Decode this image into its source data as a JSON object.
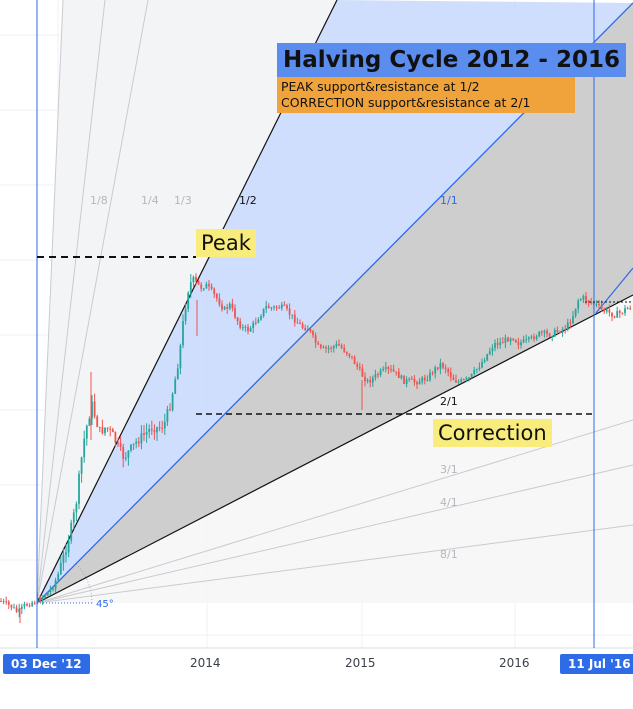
{
  "annotations": {
    "title": "Halving Cycle 2012 - 2016",
    "line1": "PEAK support&resistance at 1/2",
    "line2": "CORRECTION support&resistance at 2/1",
    "peak": "Peak",
    "correction": "Correction",
    "angle": "45°"
  },
  "fan_labels": [
    "1/8",
    "1/4",
    "1/3",
    "1/2",
    "1/1",
    "2/1",
    "3/1",
    "4/1",
    "8/1"
  ],
  "axis": {
    "start_badge": "03 Dec '12",
    "end_badge": "11 Jul '16",
    "ticks": [
      "2014",
      "2015",
      "2016"
    ]
  },
  "colors": {
    "up_candle": "#26a69a",
    "down_candle": "#ef5350",
    "fan_fill_blue": "#c7d8fb",
    "fan_fill_gray": "#c9c9c9",
    "fan_line_blue": "#2e6be6",
    "title_bg": "#5b8def",
    "subtitle_bg": "#f0a33a",
    "label_bg": "#f7ec7c",
    "badge_bg": "#2e6be6"
  },
  "chart_data": {
    "type": "candlestick",
    "series": [
      {
        "values": [
          [
            0,
            601
          ],
          [
            6,
            604
          ],
          [
            12,
            607
          ],
          [
            18,
            613
          ],
          [
            24,
            606
          ],
          [
            30,
            603
          ],
          [
            36,
            601
          ],
          [
            44,
            596
          ],
          [
            52,
            588
          ],
          [
            58,
            575
          ],
          [
            64,
            555
          ],
          [
            70,
            533
          ],
          [
            76,
            505
          ],
          [
            80,
            470
          ],
          [
            84,
            440
          ],
          [
            88,
            420
          ],
          [
            92,
            405
          ],
          [
            96,
            420
          ],
          [
            100,
            432
          ],
          [
            106,
            427
          ],
          [
            112,
            434
          ],
          [
            118,
            447
          ],
          [
            124,
            458
          ],
          [
            130,
            450
          ],
          [
            138,
            440
          ],
          [
            146,
            433
          ],
          [
            152,
            427
          ],
          [
            158,
            428
          ],
          [
            164,
            425
          ],
          [
            170,
            405
          ],
          [
            176,
            375
          ],
          [
            180,
            350
          ],
          [
            184,
            315
          ],
          [
            188,
            290
          ],
          [
            192,
            280
          ],
          [
            196,
            283
          ],
          [
            200,
            288
          ],
          [
            206,
            285
          ],
          [
            212,
            292
          ],
          [
            218,
            300
          ],
          [
            224,
            310
          ],
          [
            230,
            305
          ],
          [
            236,
            318
          ],
          [
            242,
            328
          ],
          [
            248,
            330
          ],
          [
            254,
            324
          ],
          [
            260,
            315
          ],
          [
            266,
            307
          ],
          [
            272,
            308
          ],
          [
            278,
            307
          ],
          [
            284,
            308
          ],
          [
            290,
            314
          ],
          [
            296,
            321
          ],
          [
            302,
            327
          ],
          [
            308,
            328
          ],
          [
            314,
            340
          ],
          [
            320,
            350
          ],
          [
            326,
            349
          ],
          [
            332,
            347
          ],
          [
            338,
            345
          ],
          [
            344,
            350
          ],
          [
            350,
            355
          ],
          [
            356,
            365
          ],
          [
            362,
            375
          ],
          [
            368,
            382
          ],
          [
            374,
            377
          ],
          [
            380,
            373
          ],
          [
            386,
            370
          ],
          [
            392,
            371
          ],
          [
            398,
            375
          ],
          [
            404,
            381
          ],
          [
            410,
            381
          ],
          [
            416,
            382
          ],
          [
            422,
            380
          ],
          [
            428,
            377
          ],
          [
            434,
            370
          ],
          [
            440,
            364
          ],
          [
            446,
            368
          ],
          [
            452,
            378
          ],
          [
            458,
            382
          ],
          [
            464,
            381
          ],
          [
            470,
            378
          ],
          [
            476,
            370
          ],
          [
            482,
            362
          ],
          [
            488,
            353
          ],
          [
            494,
            344
          ],
          [
            500,
            343
          ],
          [
            506,
            340
          ],
          [
            512,
            336
          ],
          [
            518,
            343
          ],
          [
            524,
            342
          ],
          [
            530,
            340
          ],
          [
            536,
            335
          ],
          [
            542,
            333
          ],
          [
            548,
            335
          ],
          [
            554,
            333
          ],
          [
            560,
            330
          ],
          [
            566,
            328
          ],
          [
            572,
            318
          ],
          [
            578,
            300
          ],
          [
            584,
            298
          ],
          [
            590,
            302
          ],
          [
            596,
            305
          ],
          [
            602,
            310
          ],
          [
            608,
            312
          ],
          [
            614,
            315
          ],
          [
            620,
            313
          ],
          [
            626,
            309
          ],
          [
            633,
            306
          ]
        ]
      }
    ],
    "xlabel": "",
    "ylabel": ""
  }
}
